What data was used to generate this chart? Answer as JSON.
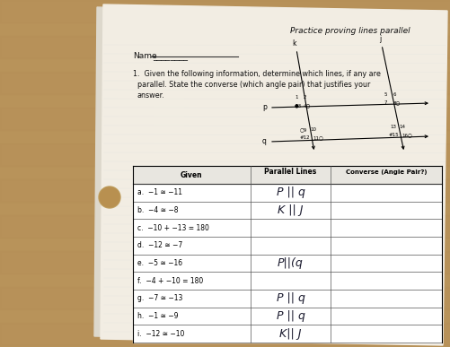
{
  "title": "Practice proving lines parallel",
  "name_label": "Name",
  "name_written": "________",
  "problem_text_1": "1.  Given the following information, determine which lines, if any are",
  "problem_text_2": "    parallel. State the converse (which angle pair) that justifies your",
  "problem_text_3": "    answer.",
  "col_headers": [
    "Given",
    "Parallel Lines",
    "Converse (Angle Pair?)"
  ],
  "rows": [
    {
      "label": "a.",
      "given": "−1 ≅ −11"
    },
    {
      "label": "b.",
      "given": "−4 ≅ −8"
    },
    {
      "label": "c.",
      "given": "−10 + −13 = 180"
    },
    {
      "label": "d.",
      "given": "−12 ≅ −7"
    },
    {
      "label": "e.",
      "given": "−5 ≅ −16"
    },
    {
      "label": "f.",
      "given": "−4 + −10 = 180"
    },
    {
      "label": "g.",
      "given": "−7 ≅ −13"
    },
    {
      "label": "h.",
      "given": "−1 ≅ −9"
    },
    {
      "label": "i.",
      "given": "−12 ≅ −10"
    }
  ],
  "handwritten": {
    "a": "P || q",
    "b": "K || J",
    "c": "",
    "d": "",
    "e": "P||(q",
    "f": "",
    "g": "P || q",
    "h": "P || q",
    "i": "K|| J"
  },
  "bg_wood": "#c8a870",
  "paper_color": "#eeeae0",
  "paper2_color": "#e8e4da",
  "line_color": "#cccccc"
}
